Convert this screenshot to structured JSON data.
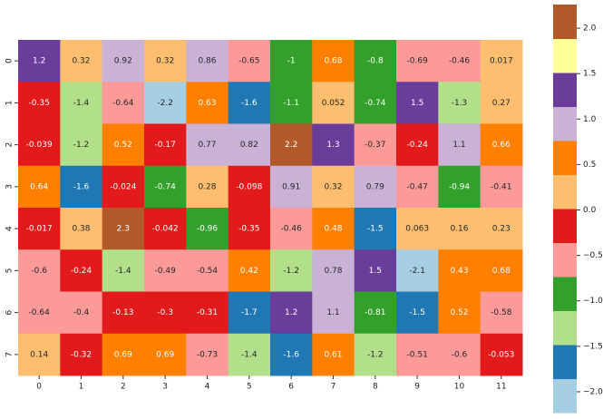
{
  "chart_data": {
    "type": "heatmap",
    "columns": [
      0,
      1,
      2,
      3,
      4,
      5,
      6,
      7,
      8,
      9,
      10,
      11
    ],
    "rows": [
      0,
      1,
      2,
      3,
      4,
      5,
      6,
      7
    ],
    "values": [
      [
        1.2,
        0.32,
        0.92,
        0.32,
        0.86,
        -0.65,
        -1,
        0.68,
        -0.8,
        -0.69,
        -0.46,
        0.017
      ],
      [
        -0.35,
        -1.4,
        -0.64,
        -2.2,
        0.63,
        -1.6,
        -1.1,
        0.052,
        -0.74,
        1.5,
        -1.3,
        0.27
      ],
      [
        -0.039,
        -1.2,
        0.52,
        -0.17,
        0.77,
        0.82,
        2.2,
        1.3,
        -0.37,
        -0.24,
        1.1,
        0.66
      ],
      [
        0.64,
        -1.6,
        -0.024,
        -0.74,
        0.28,
        -0.098,
        0.91,
        0.32,
        0.79,
        -0.47,
        -0.94,
        -0.41
      ],
      [
        -0.017,
        0.38,
        2.3,
        -0.042,
        -0.96,
        -0.35,
        -0.46,
        0.48,
        -1.5,
        0.063,
        0.16,
        0.23
      ],
      [
        -0.6,
        -0.24,
        -1.4,
        -0.49,
        -0.54,
        0.42,
        -1.2,
        0.78,
        1.5,
        -2.1,
        0.43,
        0.68
      ],
      [
        -0.64,
        -0.4,
        -0.13,
        -0.3,
        -0.31,
        -1.7,
        1.2,
        1.1,
        -0.81,
        -1.5,
        0.52,
        -0.58
      ],
      [
        0.14,
        -0.32,
        0.69,
        0.69,
        -0.73,
        -1.4,
        -1.6,
        0.61,
        -1.2,
        -0.51,
        -0.6,
        -0.053
      ]
    ],
    "colors": [
      "#a6cee3",
      "#1f78b4",
      "#b2df8a",
      "#33a02c",
      "#fb9a99",
      "#e31a1c",
      "#fdbf6f",
      "#ff7f00",
      "#cab2d6",
      "#6a3d9a",
      "#ffff99",
      "#b15928"
    ],
    "clim": [
      -2.23,
      2.26
    ],
    "cbar_ticks": [
      {
        "value": -2,
        "label": "−2.0"
      },
      {
        "value": -1.5,
        "label": "−1.5"
      },
      {
        "value": -1,
        "label": "−1.0"
      },
      {
        "value": -0.5,
        "label": "−0.5"
      },
      {
        "value": 0,
        "label": "0.0"
      },
      {
        "value": 0.5,
        "label": "0.5"
      },
      {
        "value": 1,
        "label": "1.0"
      },
      {
        "value": 1.5,
        "label": "1.5"
      },
      {
        "value": 2,
        "label": "2.0"
      }
    ]
  }
}
